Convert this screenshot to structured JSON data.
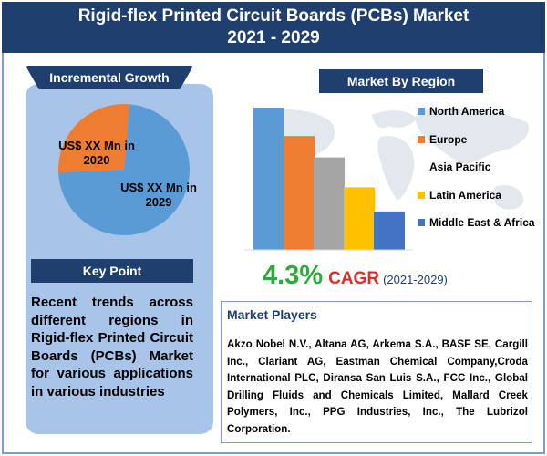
{
  "header": {
    "title_line1": "Rigid-flex Printed Circuit Boards (PCBs) Market",
    "title_line2": "2021 - 2029"
  },
  "incremental_growth": {
    "heading": "Incremental Growth",
    "label_2020": "US$ XX Mn in 2020",
    "label_2029": "US$ XX Mn in 2029",
    "colors": {
      "2020": "#ee7d31",
      "2029": "#5b9bd5"
    }
  },
  "key_point": {
    "heading": "Key Point",
    "text": "Recent trends across different regions in Rigid-flex Printed Circuit Boards (PCBs) Market for various applications in various industries"
  },
  "market_by_region": {
    "heading": "Market By Region",
    "legend": [
      {
        "label": "North America",
        "color": "#5b9bd5"
      },
      {
        "label": "Europe",
        "color": "#ee7d31"
      },
      {
        "label": "Asia Pacific",
        "color": "#a5a5a5"
      },
      {
        "label": "Latin America",
        "color": "#ffc000"
      },
      {
        "label": "Middle East & Africa",
        "color": "#4472c4"
      }
    ]
  },
  "cagr": {
    "value": "4.3%",
    "label": "CAGR",
    "period": "(2021-2029)"
  },
  "market_players": {
    "heading": "Market Players",
    "text": "Akzo Nobel N.V., Altana AG, Arkema S.A., BASF SE, Cargill Inc., Clariant AG, Eastman Chemical Company,Croda International PLC, Diransa San Luis S.A., FCC Inc., Global Drilling Fluids and Chemicals Limited, Mallard Creek Polymers, Inc., PPG Industries, Inc., The Lubrizol Corporation."
  },
  "chart_data": [
    {
      "type": "pie",
      "title": "",
      "categories": [
        "US$ XX Mn in 2020",
        "US$ XX Mn in 2029"
      ],
      "values": [
        27,
        73
      ]
    },
    {
      "type": "bar",
      "title": "",
      "categories": [
        "North America",
        "Europe",
        "Asia Pacific",
        "Latin America",
        "Middle East & Africa"
      ],
      "values": [
        100,
        80,
        65,
        44,
        27
      ],
      "colors": [
        "#5b9bd5",
        "#ee7d31",
        "#a5a5a5",
        "#ffc000",
        "#4472c4"
      ],
      "grid": false,
      "legend": "right"
    }
  ]
}
